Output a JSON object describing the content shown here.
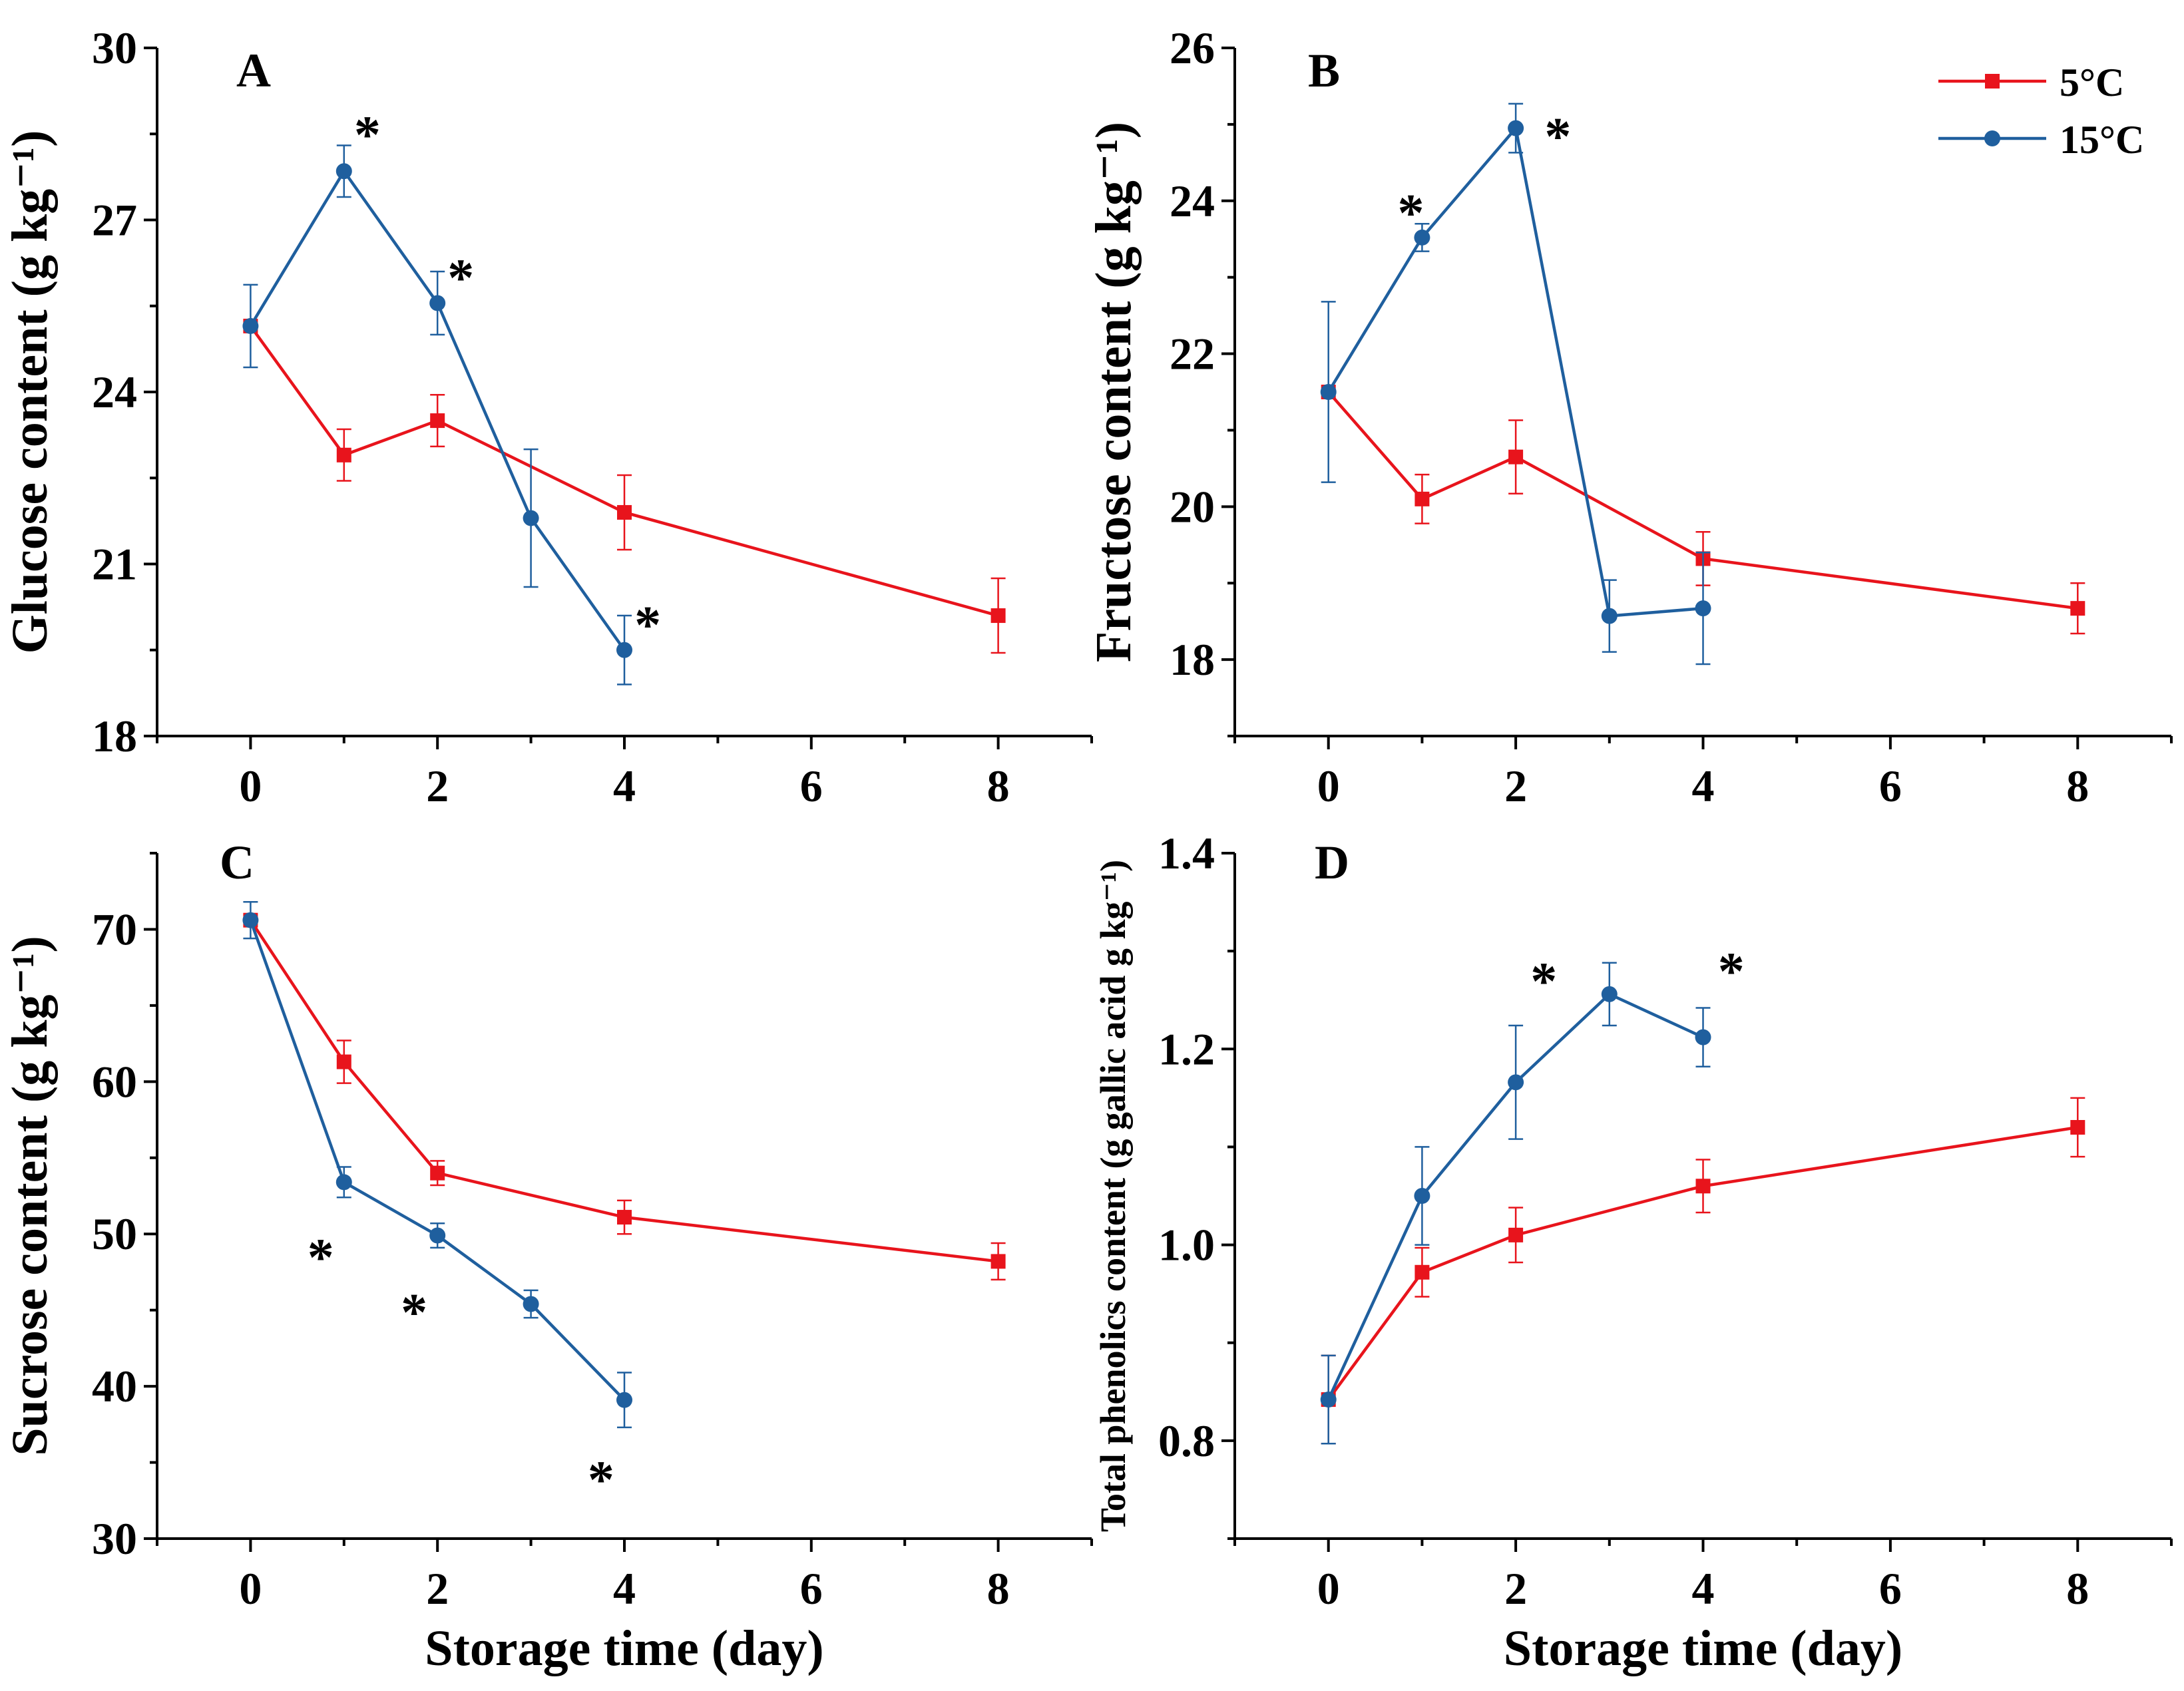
{
  "colors": {
    "series_5": "#e8141c",
    "series_15": "#1f5f9e"
  },
  "legend": [
    {
      "label": "5°C",
      "marker": "square",
      "color": "#e8141c"
    },
    {
      "label": "15°C",
      "marker": "circle",
      "color": "#1f5f9e"
    }
  ],
  "chart_data": [
    {
      "panel": "A",
      "type": "line",
      "xlabel": "",
      "ylabel": "Glucose content (g kg⁻¹)",
      "xlim": [
        -1,
        9
      ],
      "ylim": [
        18,
        30
      ],
      "xticks": [
        0,
        2,
        4,
        6,
        8
      ],
      "yticks": [
        18,
        21,
        24,
        27,
        30
      ],
      "grid": false,
      "series": [
        {
          "name": "5°C",
          "x": [
            0,
            1,
            2,
            4,
            8
          ],
          "y": [
            25.15,
            22.9,
            23.5,
            21.9,
            20.1
          ],
          "err": [
            0,
            0.45,
            0.45,
            0.65,
            0.65
          ]
        },
        {
          "name": "15°C",
          "x": [
            0,
            1,
            2,
            3,
            4
          ],
          "y": [
            25.15,
            27.85,
            25.55,
            21.8,
            19.5
          ],
          "err": [
            0.72,
            0.45,
            0.55,
            1.2,
            0.6
          ]
        }
      ],
      "annotations": [
        {
          "text": "*",
          "x": 1.25,
          "y": 28.5
        },
        {
          "text": "*",
          "x": 2.25,
          "y": 26.0
        },
        {
          "text": "*",
          "x": 4.25,
          "y": 19.95
        }
      ]
    },
    {
      "panel": "B",
      "type": "line",
      "xlabel": "",
      "ylabel": "Fructose content (g kg⁻¹)",
      "xlim": [
        -1,
        9
      ],
      "ylim": [
        17,
        26
      ],
      "xticks": [
        0,
        2,
        4,
        6,
        8
      ],
      "yticks": [
        18,
        20,
        22,
        24,
        26
      ],
      "grid": false,
      "series": [
        {
          "name": "5°C",
          "x": [
            0,
            1,
            2,
            4,
            8
          ],
          "y": [
            21.5,
            20.1,
            20.65,
            19.32,
            18.67
          ],
          "err": [
            0,
            0.32,
            0.48,
            0.35,
            0.33
          ]
        },
        {
          "name": "15°C",
          "x": [
            0,
            1,
            2,
            3,
            4
          ],
          "y": [
            21.5,
            23.52,
            24.95,
            18.57,
            18.67
          ],
          "err": [
            1.18,
            0.18,
            0.32,
            0.47,
            0.73
          ]
        }
      ],
      "annotations": [
        {
          "text": "*",
          "x": 0.88,
          "y": 23.85
        },
        {
          "text": "*",
          "x": 2.45,
          "y": 24.85
        }
      ]
    },
    {
      "panel": "C",
      "type": "line",
      "xlabel": "Storage time (day)",
      "ylabel": "Sucrose content (g kg⁻¹)",
      "xlim": [
        -1,
        9
      ],
      "ylim": [
        30,
        75
      ],
      "xticks": [
        0,
        2,
        4,
        6,
        8
      ],
      "yticks": [
        30,
        40,
        50,
        60,
        70
      ],
      "grid": false,
      "series": [
        {
          "name": "5°C",
          "x": [
            0,
            1,
            2,
            4,
            8
          ],
          "y": [
            70.6,
            61.3,
            54.0,
            51.1,
            48.2
          ],
          "err": [
            0,
            1.4,
            0.8,
            1.1,
            1.2
          ]
        },
        {
          "name": "15°C",
          "x": [
            0,
            1,
            2,
            3,
            4
          ],
          "y": [
            70.6,
            53.4,
            49.9,
            45.4,
            39.1
          ],
          "err": [
            1.2,
            1.0,
            0.8,
            0.9,
            1.8
          ]
        }
      ],
      "annotations": [
        {
          "text": "*",
          "x": 0.75,
          "y": 48.5
        },
        {
          "text": "*",
          "x": 1.75,
          "y": 44.9
        },
        {
          "text": "*",
          "x": 3.75,
          "y": 33.9
        }
      ]
    },
    {
      "panel": "D",
      "type": "line",
      "xlabel": "Storage time (day)",
      "ylabel": "Total phenolics content (g gallic acid g kg⁻¹)",
      "xlim": [
        -1,
        9
      ],
      "ylim": [
        0.7,
        1.4
      ],
      "xticks": [
        0,
        2,
        4,
        6,
        8
      ],
      "yticks": [
        0.8,
        1.0,
        1.2,
        1.4
      ],
      "grid": false,
      "series": [
        {
          "name": "5°C",
          "x": [
            0,
            1,
            2,
            4,
            8
          ],
          "y": [
            0.842,
            0.972,
            1.01,
            1.06,
            1.12
          ],
          "err": [
            0.045,
            0.025,
            0.028,
            0.027,
            0.03
          ]
        },
        {
          "name": "15°C",
          "x": [
            0,
            1,
            2,
            3,
            4
          ],
          "y": [
            0.842,
            1.05,
            1.166,
            1.256,
            1.212
          ],
          "err": [
            0.045,
            0.05,
            0.058,
            0.032,
            0.03
          ]
        }
      ],
      "annotations": [
        {
          "text": "*",
          "x": 2.3,
          "y": 1.27
        },
        {
          "text": "*",
          "x": 4.3,
          "y": 1.28
        }
      ]
    }
  ]
}
